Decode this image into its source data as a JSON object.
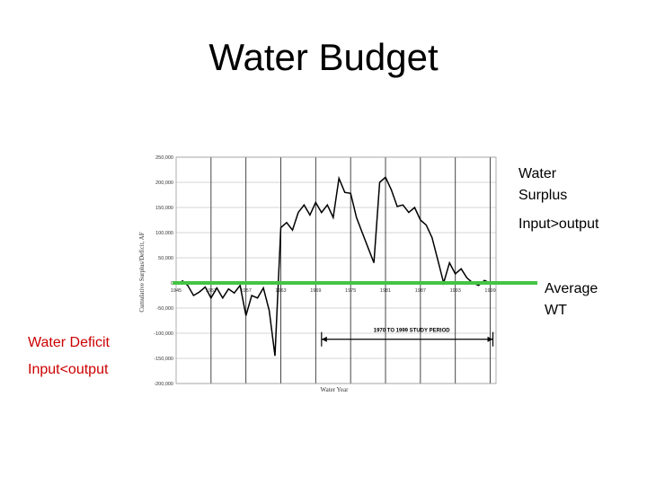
{
  "slide": {
    "title": "Water Budget"
  },
  "annotations": {
    "surplus": [
      "Water",
      "Surplus",
      "",
      "Input>output"
    ],
    "average": [
      "Average",
      "WT"
    ],
    "deficit": [
      "Water Deficit",
      "",
      "Input<output"
    ]
  },
  "colors": {
    "average_line": "#44c444",
    "deficit_text": "#cc0000",
    "curve": "#000000",
    "grid": "#999999"
  },
  "chart_data": {
    "type": "line",
    "title": "",
    "xlabel": "Water Year",
    "ylabel": "Cumulative Surplus/Deficit, AF",
    "xlim": [
      1945,
      2000
    ],
    "ylim": [
      -200000,
      250000
    ],
    "xticks": [
      1945,
      1951,
      1957,
      1963,
      1969,
      1975,
      1981,
      1987,
      1993,
      1999
    ],
    "xtick_labels": [
      "1945",
      "1951",
      "1957",
      "1963",
      "1969",
      "1975",
      "1981",
      "1987",
      "1993",
      "1999"
    ],
    "yticks": [
      250000,
      200000,
      150000,
      100000,
      50000,
      0,
      -50000,
      -100000,
      -150000,
      -200000
    ],
    "ytick_labels": [
      "250,000",
      "200,000",
      "150,000",
      "100,000",
      "50,000",
      "0",
      "-50,000",
      "-100,000",
      "-150,000",
      "-200,000"
    ],
    "grid": true,
    "study_period": {
      "label": "1970 TO 1999 STUDY PERIOD",
      "range": [
        1970,
        1999
      ]
    },
    "series": [
      {
        "values": [
          [
            1946,
            5000
          ],
          [
            1947,
            -5000
          ],
          [
            1948,
            -25000
          ],
          [
            1949,
            -18000
          ],
          [
            1950,
            -8000
          ],
          [
            1951,
            -30000
          ],
          [
            1952,
            -10000
          ],
          [
            1953,
            -30000
          ],
          [
            1954,
            -12000
          ],
          [
            1955,
            -20000
          ],
          [
            1956,
            -5000
          ],
          [
            1957,
            -65000
          ],
          [
            1958,
            -25000
          ],
          [
            1959,
            -30000
          ],
          [
            1960,
            -10000
          ],
          [
            1961,
            -55000
          ],
          [
            1962,
            -145000
          ],
          [
            1963,
            110000
          ],
          [
            1964,
            120000
          ],
          [
            1965,
            105000
          ],
          [
            1966,
            140000
          ],
          [
            1967,
            155000
          ],
          [
            1968,
            135000
          ],
          [
            1969,
            160000
          ],
          [
            1970,
            140000
          ],
          [
            1971,
            155000
          ],
          [
            1972,
            130000
          ],
          [
            1973,
            208000
          ],
          [
            1974,
            180000
          ],
          [
            1975,
            178000
          ],
          [
            1976,
            130000
          ],
          [
            1977,
            100000
          ],
          [
            1978,
            70000
          ],
          [
            1979,
            40000
          ],
          [
            1980,
            200000
          ],
          [
            1981,
            210000
          ],
          [
            1982,
            185000
          ],
          [
            1983,
            152000
          ],
          [
            1984,
            155000
          ],
          [
            1985,
            140000
          ],
          [
            1986,
            150000
          ],
          [
            1987,
            125000
          ],
          [
            1988,
            115000
          ],
          [
            1989,
            90000
          ],
          [
            1990,
            45000
          ],
          [
            1991,
            0
          ],
          [
            1992,
            40000
          ],
          [
            1993,
            18000
          ],
          [
            1994,
            28000
          ],
          [
            1995,
            10000
          ],
          [
            1996,
            0
          ],
          [
            1997,
            -5000
          ],
          [
            1998,
            5000
          ],
          [
            1999,
            0
          ]
        ]
      }
    ],
    "average_line": {
      "y": 0
    }
  }
}
